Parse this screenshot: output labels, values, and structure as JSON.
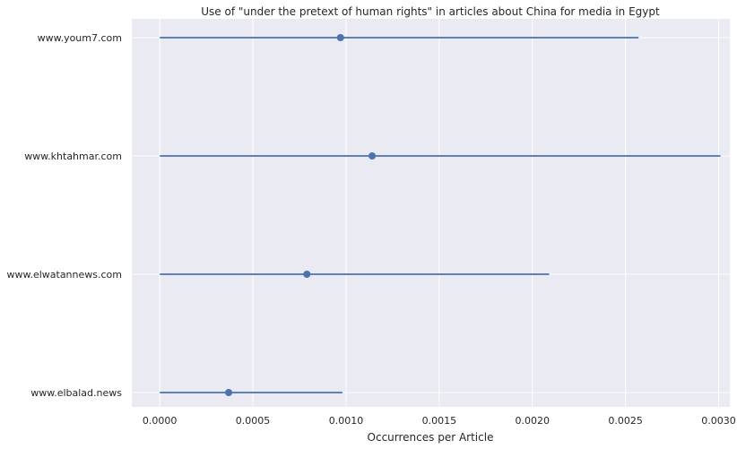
{
  "chart_data": {
    "type": "scatter",
    "title": "Use of \"under the pretext of human rights\" in articles about China for media in Egypt",
    "xlabel": "Occurrences per Article",
    "ylabel": "",
    "xlim": [
      -0.00015,
      0.00306
    ],
    "x_ticks": [
      "0.0000",
      "0.0005",
      "0.0010",
      "0.0015",
      "0.0020",
      "0.0025",
      "0.0030"
    ],
    "x_tick_values": [
      0,
      0.0005,
      0.001,
      0.0015,
      0.002,
      0.0025,
      0.003
    ],
    "grid": true,
    "series_color": "#4c72b0",
    "background": "#eaeaf2",
    "categories": [
      "www.youm7.com",
      "www.khtahmar.com",
      "www.elwatannews.com",
      "www.elbalad.news"
    ],
    "values": [
      0.00097,
      0.00114,
      0.00079,
      0.00037
    ],
    "error_low": [
      0.0,
      0.0,
      0.0,
      0.0
    ],
    "error_high": [
      0.00257,
      0.00301,
      0.00209,
      0.00098
    ]
  }
}
